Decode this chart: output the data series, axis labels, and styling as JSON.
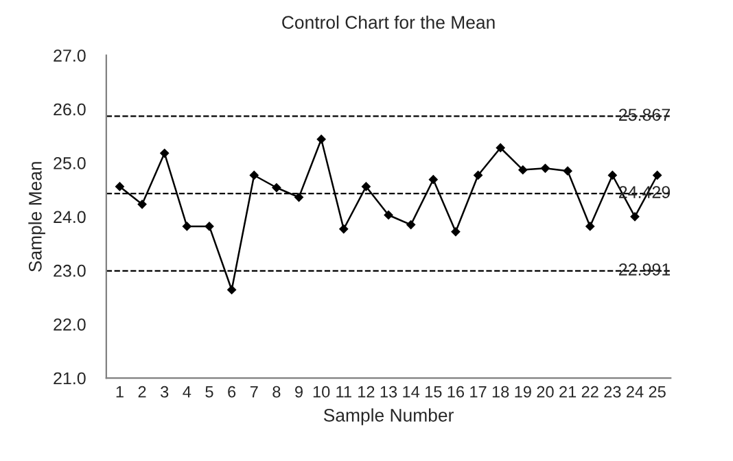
{
  "chart_data": {
    "type": "line",
    "title": "Control Chart for the Mean",
    "xlabel": "Sample Number",
    "ylabel": "Sample Mean",
    "categories": [
      "1",
      "2",
      "3",
      "4",
      "5",
      "6",
      "7",
      "8",
      "9",
      "10",
      "11",
      "12",
      "13",
      "14",
      "15",
      "16",
      "17",
      "18",
      "19",
      "20",
      "21",
      "22",
      "23",
      "24",
      "25"
    ],
    "series": [
      {
        "color": "#000000",
        "values": [
          24.56,
          24.23,
          25.18,
          23.82,
          23.82,
          22.64,
          24.77,
          24.54,
          24.36,
          25.44,
          23.77,
          24.56,
          24.03,
          23.85,
          24.69,
          23.72,
          24.77,
          25.28,
          24.87,
          24.9,
          24.85,
          23.82,
          24.77,
          24.0,
          24.77
        ]
      }
    ],
    "ylim": [
      21,
      27
    ],
    "yticks": [
      {
        "value": 21,
        "label": "21.0"
      },
      {
        "value": 22,
        "label": "22.0"
      },
      {
        "value": 23,
        "label": "23.0"
      },
      {
        "value": 24,
        "label": "24.0"
      },
      {
        "value": 25,
        "label": "25.0"
      },
      {
        "value": 26,
        "label": "26.0"
      },
      {
        "value": 27,
        "label": "27.0"
      }
    ],
    "ref_lines": [
      {
        "axis": "y",
        "value": 25.867,
        "label": "25.867",
        "line_style": "dashed"
      },
      {
        "axis": "y",
        "value": 24.429,
        "label": "24.429",
        "line_style": "dashed"
      },
      {
        "axis": "y",
        "value": 22.991,
        "label": "22.991",
        "line_style": "dashed"
      }
    ],
    "marker": "diamond",
    "line_style": "solid",
    "grid": false,
    "legend": false
  }
}
